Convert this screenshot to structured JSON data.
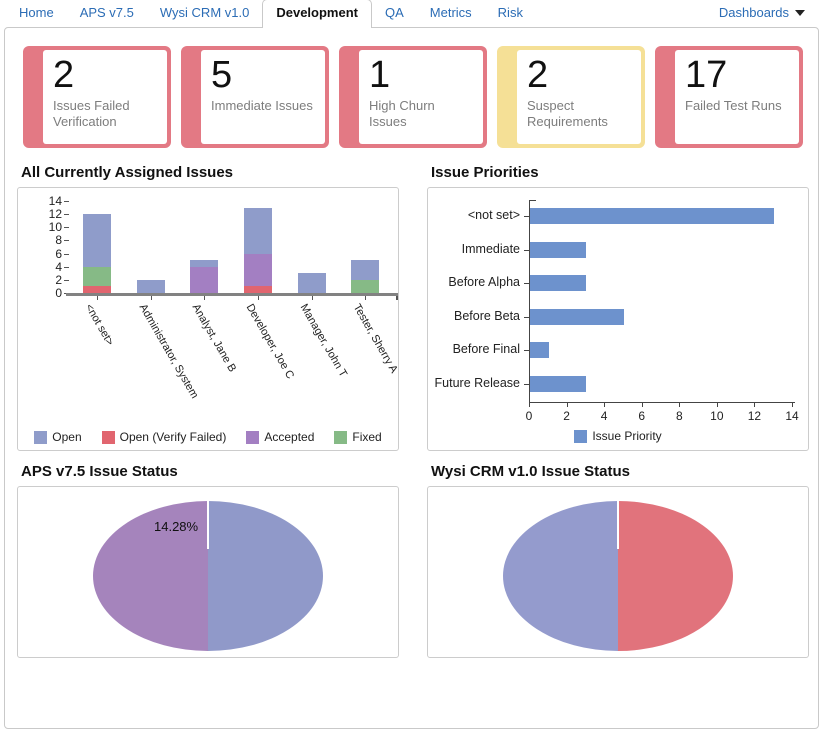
{
  "nav": {
    "tabs": [
      {
        "label": "Home",
        "active": false
      },
      {
        "label": "APS v7.5",
        "active": false
      },
      {
        "label": "Wysi CRM v1.0",
        "active": false
      },
      {
        "label": "Development",
        "active": true
      },
      {
        "label": "QA",
        "active": false
      },
      {
        "label": "Metrics",
        "active": false
      },
      {
        "label": "Risk",
        "active": false
      }
    ],
    "dashboards_label": "Dashboards",
    "link_color": "#2b6cb5"
  },
  "cards": [
    {
      "value": "2",
      "label": "Issues Failed Verification",
      "color": "#e37984",
      "status": "red"
    },
    {
      "value": "5",
      "label": "Immediate Issues",
      "color": "#e37984",
      "status": "red"
    },
    {
      "value": "1",
      "label": "High Churn Issues",
      "color": "#e37984",
      "status": "red"
    },
    {
      "value": "2",
      "label": "Suspect Requirements",
      "color": "#f5e096",
      "status": "yellow"
    },
    {
      "value": "17",
      "label": "Failed Test Runs",
      "color": "#e37984",
      "status": "red"
    }
  ],
  "chart_data": [
    {
      "type": "bar",
      "stacked": true,
      "title": "All Currently Assigned Issues",
      "categories": [
        "<not set>",
        "Administrator, System",
        "Analyst, Jane B",
        "Developer, Joe C",
        "Manager, John T",
        "Tester, Sherry A"
      ],
      "series": [
        {
          "name": "Open",
          "color": "#8f9cca",
          "values": [
            8,
            2,
            1,
            7,
            3,
            3
          ]
        },
        {
          "name": "Open (Verify Failed)",
          "color": "#e1656f",
          "values": [
            1,
            0,
            0,
            1,
            0,
            0
          ]
        },
        {
          "name": "Accepted",
          "color": "#a37fc2",
          "values": [
            0,
            0,
            4,
            5,
            0,
            0
          ]
        },
        {
          "name": "Fixed",
          "color": "#86ba86",
          "values": [
            3,
            0,
            0,
            0,
            0,
            2
          ]
        }
      ],
      "stack_order_bottom_to_top": [
        "Open (Verify Failed)",
        "Accepted",
        "Fixed",
        "Open"
      ],
      "totals": [
        12,
        2,
        5,
        13,
        3,
        5
      ],
      "ylim": [
        0,
        14
      ],
      "ytick_step": 2,
      "grid": false,
      "legend_position": "bottom"
    },
    {
      "type": "bar",
      "orientation": "horizontal",
      "title": "Issue Priorities",
      "categories": [
        "<not set>",
        "Immediate",
        "Before Alpha",
        "Before Beta",
        "Before Final",
        "Future Release"
      ],
      "values": [
        13,
        3,
        3,
        5,
        1,
        3
      ],
      "series_name": "Issue Priority",
      "bar_color": "#6d92cd",
      "xlim": [
        0,
        14
      ],
      "xtick_step": 2,
      "grid": false,
      "legend_position": "bottom"
    },
    {
      "type": "pie",
      "title": "APS v7.5 Issue Status",
      "slices": [
        {
          "side": "left",
          "color": "#a584bc",
          "label": "14.28%"
        },
        {
          "side": "right",
          "color": "#9099c9",
          "label": ""
        }
      ]
    },
    {
      "type": "pie",
      "title": "Wysi CRM v1.0 Issue Status",
      "slices": [
        {
          "side": "left",
          "color": "#949bcd",
          "label": ""
        },
        {
          "side": "right",
          "color": "#e1737c",
          "label": ""
        }
      ]
    }
  ]
}
